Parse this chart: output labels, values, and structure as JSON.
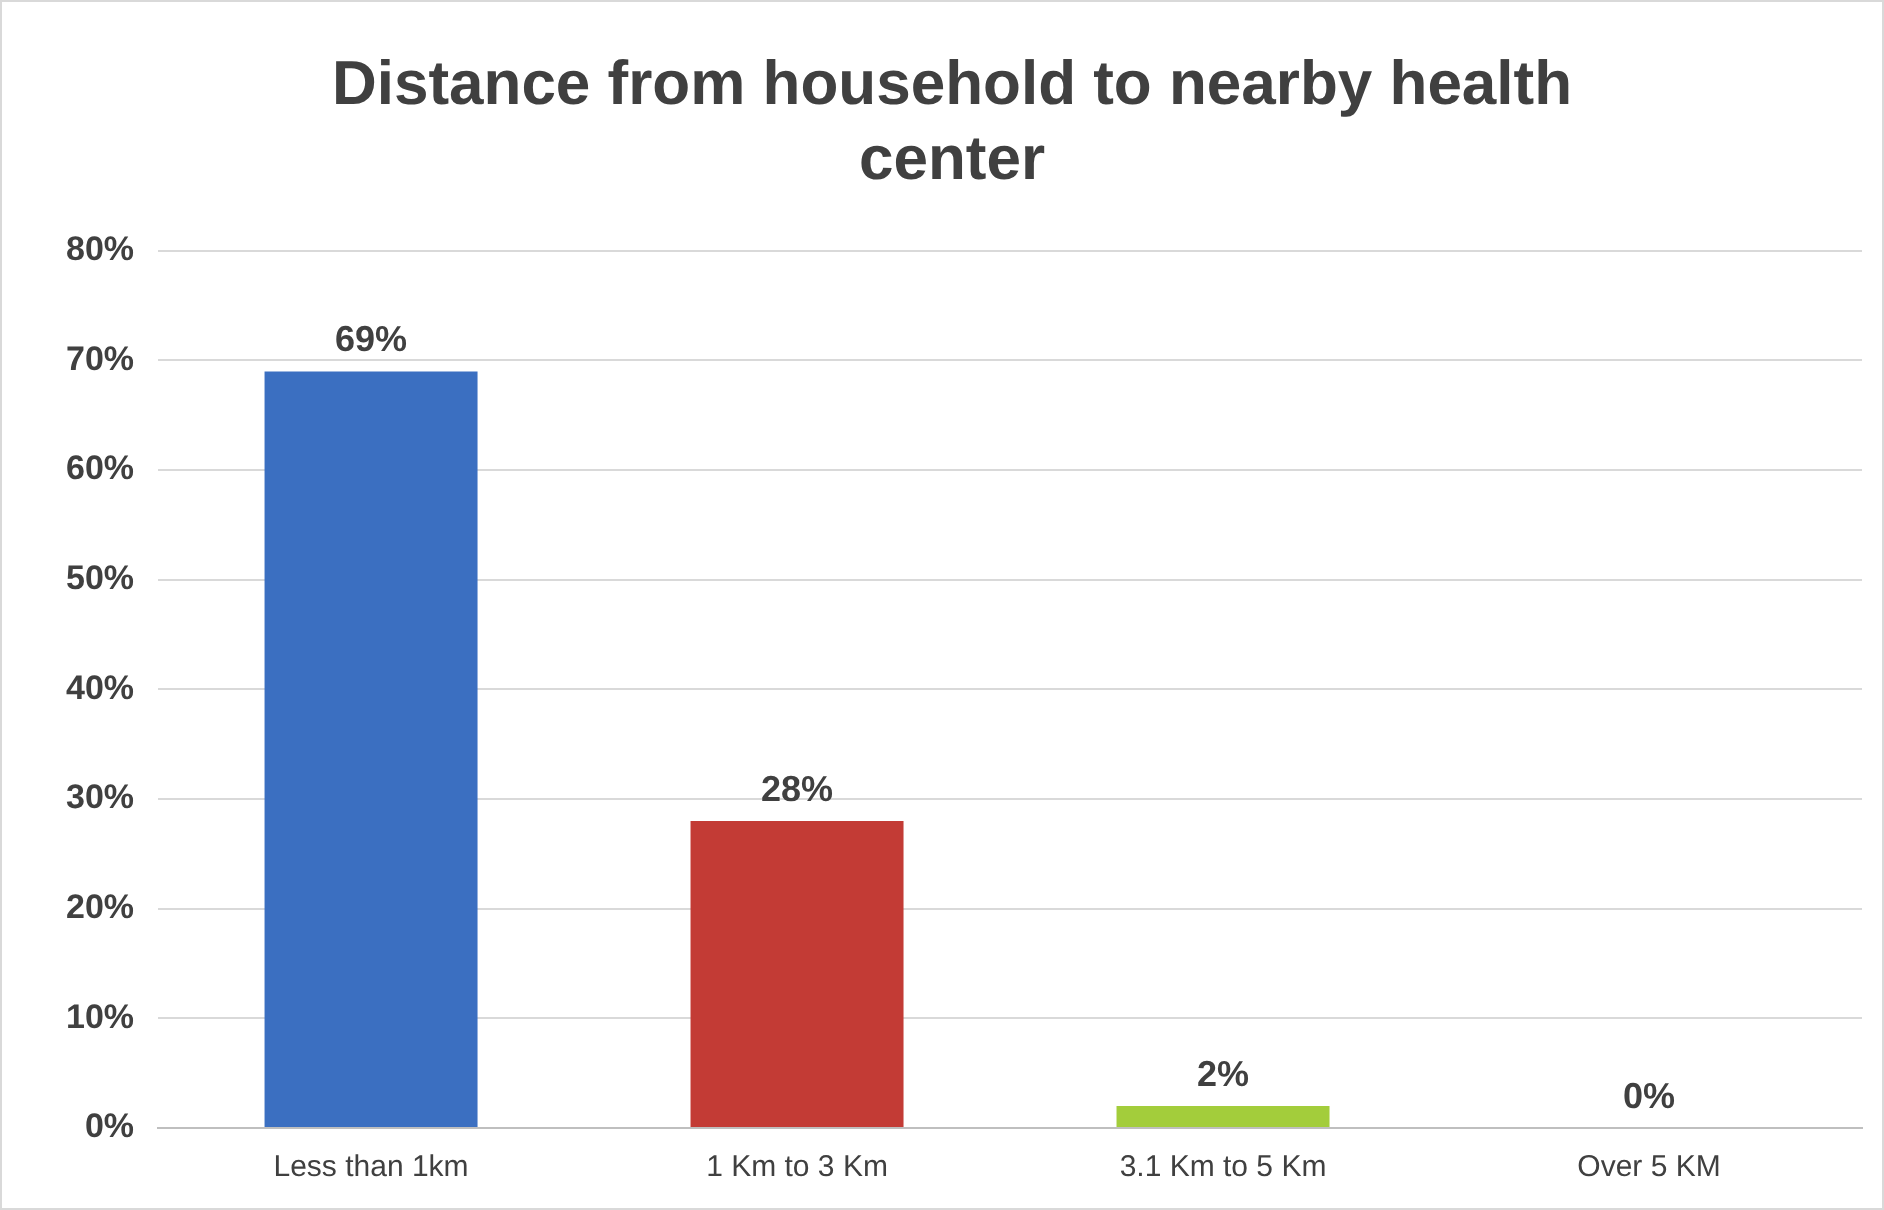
{
  "chart_data": {
    "type": "bar",
    "title": "Distance from household to nearby health center",
    "categories": [
      "Less than 1km",
      "1 Km to 3 Km",
      "3.1 Km to 5 Km",
      "Over 5 KM"
    ],
    "values": [
      69,
      28,
      2,
      0
    ],
    "colors": [
      "#3b6fc1",
      "#c33b35",
      "#a3cd3b",
      "#8e86b8"
    ],
    "value_labels": [
      "69%",
      "28%",
      "2%",
      "0%"
    ],
    "ylim": [
      0,
      80
    ],
    "yticks": [
      {
        "value": 0,
        "label": "0%"
      },
      {
        "value": 10,
        "label": "10%"
      },
      {
        "value": 20,
        "label": "20%"
      },
      {
        "value": 30,
        "label": "30%"
      },
      {
        "value": 40,
        "label": "40%"
      },
      {
        "value": 50,
        "label": "50%"
      },
      {
        "value": 60,
        "label": "60%"
      },
      {
        "value": 70,
        "label": "70%"
      },
      {
        "value": 80,
        "label": "80%"
      }
    ],
    "grid": "y",
    "legend": false
  }
}
